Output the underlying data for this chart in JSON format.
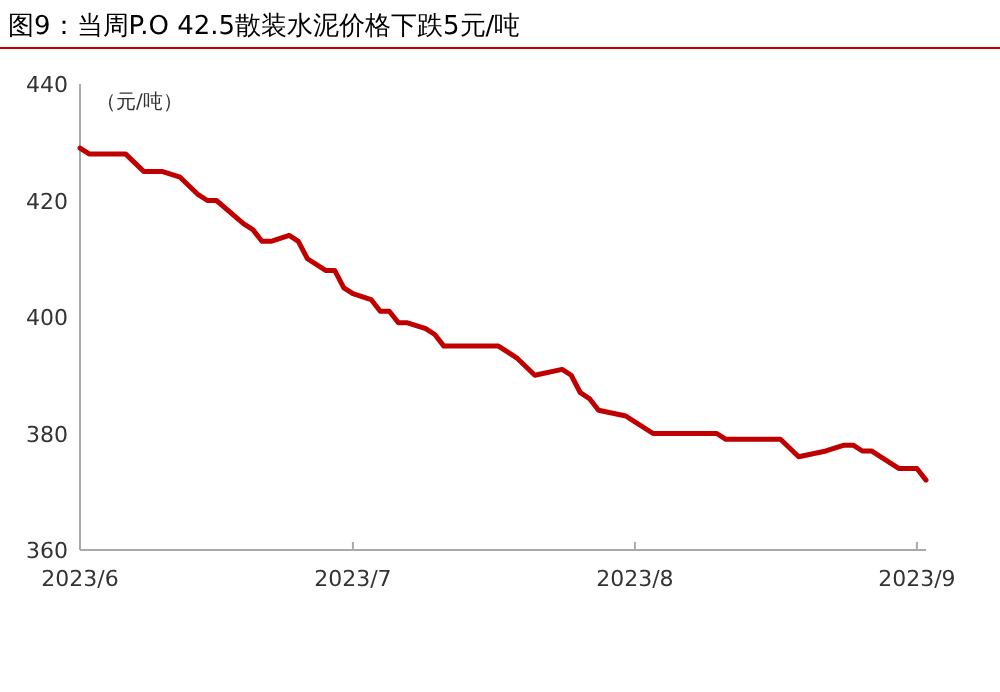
{
  "chart_data": {
    "type": "line",
    "title": "图9：当周P.O 42.5散装水泥价格下跌5元/吨",
    "ylabel": "（元/吨）",
    "x": [
      "2023-06-01",
      "2023-06-02",
      "2023-06-06",
      "2023-06-08",
      "2023-06-10",
      "2023-06-12",
      "2023-06-14",
      "2023-06-15",
      "2023-06-16",
      "2023-06-19",
      "2023-06-20",
      "2023-06-21",
      "2023-06-22",
      "2023-06-24",
      "2023-06-25",
      "2023-06-26",
      "2023-06-28",
      "2023-06-29",
      "2023-06-30",
      "2023-07-01",
      "2023-07-03",
      "2023-07-04",
      "2023-07-05",
      "2023-07-06",
      "2023-07-07",
      "2023-07-09",
      "2023-07-10",
      "2023-07-11",
      "2023-07-17",
      "2023-07-19",
      "2023-07-21",
      "2023-07-24",
      "2023-07-25",
      "2023-07-26",
      "2023-07-27",
      "2023-07-28",
      "2023-07-31",
      "2023-08-01",
      "2023-08-03",
      "2023-08-10",
      "2023-08-11",
      "2023-08-17",
      "2023-08-19",
      "2023-08-22",
      "2023-08-24",
      "2023-08-25",
      "2023-08-26",
      "2023-08-27",
      "2023-08-30",
      "2023-09-01",
      "2023-09-02"
    ],
    "series": [
      {
        "color": "#c00000",
        "values": [
          429,
          428,
          428,
          425,
          425,
          424,
          421,
          420,
          420,
          416,
          415,
          413,
          413,
          414,
          413,
          410,
          408,
          408,
          405,
          404,
          403,
          401,
          401,
          399,
          399,
          398,
          397,
          395,
          395,
          393,
          390,
          391,
          390,
          387,
          386,
          384,
          383,
          382,
          380,
          380,
          379,
          379,
          376,
          377,
          378,
          378,
          377,
          377,
          374,
          374,
          372
        ]
      }
    ],
    "xlim": [
      "2023-06-01",
      "2023-09-02"
    ],
    "xticks": [
      {
        "value": "2023-06-01",
        "label": "2023/6"
      },
      {
        "value": "2023-07-01",
        "label": "2023/7"
      },
      {
        "value": "2023-08-01",
        "label": "2023/8"
      },
      {
        "value": "2023-09-01",
        "label": "2023/9"
      }
    ],
    "ylim": [
      360,
      440
    ],
    "yticks": [
      360,
      380,
      400,
      420,
      440
    ],
    "grid": false,
    "marker": "none",
    "line_style": "solid"
  }
}
